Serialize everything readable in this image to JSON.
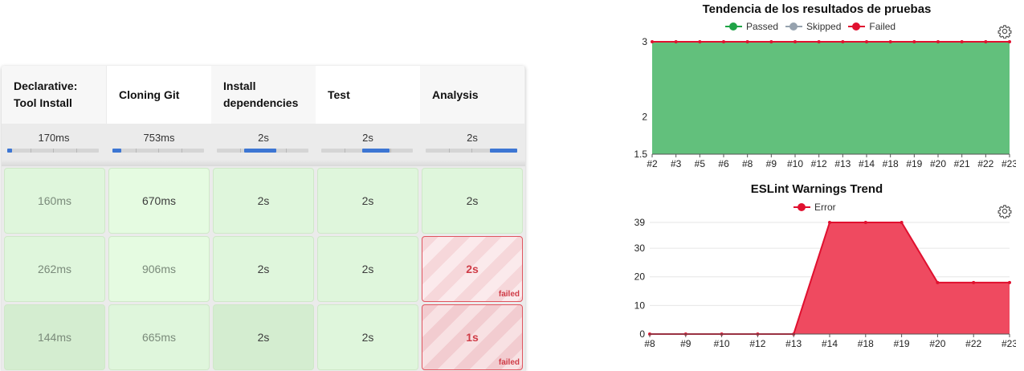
{
  "stage_view": {
    "stages": [
      {
        "name": "Declarative:\nTool Install",
        "avg": "170ms",
        "avg_fraction": 0.05
      },
      {
        "name": "Cloning Git",
        "avg": "753ms",
        "avg_fraction": 0.1
      },
      {
        "name": "Install\ndependencies",
        "avg": "2s",
        "avg_fraction": 0.35
      },
      {
        "name": "Test",
        "avg": "2s",
        "avg_fraction": 0.3
      },
      {
        "name": "Analysis",
        "avg": "2s",
        "avg_fraction": 0.3
      }
    ],
    "builds": [
      {
        "cells": [
          {
            "time": "160ms",
            "status": "success"
          },
          {
            "time": "670ms",
            "status": "success"
          },
          {
            "time": "2s",
            "status": "success"
          },
          {
            "time": "2s",
            "status": "success"
          },
          {
            "time": "2s",
            "status": "success"
          }
        ]
      },
      {
        "cells": [
          {
            "time": "262ms",
            "status": "success"
          },
          {
            "time": "906ms",
            "status": "success"
          },
          {
            "time": "2s",
            "status": "success"
          },
          {
            "time": "2s",
            "status": "success"
          },
          {
            "time": "2s",
            "status": "failed",
            "status_label": "failed"
          }
        ]
      },
      {
        "cells": [
          {
            "time": "144ms",
            "status": "success"
          },
          {
            "time": "665ms",
            "status": "success"
          },
          {
            "time": "2s",
            "status": "success"
          },
          {
            "time": "2s",
            "status": "success"
          },
          {
            "time": "1s",
            "status": "failed",
            "status_label": "failed"
          }
        ]
      }
    ]
  },
  "icons": {
    "settings": "gear-icon"
  },
  "chart_data": [
    {
      "type": "area",
      "title": "Tendencia de los resultados de pruebas",
      "x": [
        "#2",
        "#3",
        "#5",
        "#6",
        "#8",
        "#9",
        "#10",
        "#12",
        "#13",
        "#14",
        "#18",
        "#19",
        "#20",
        "#21",
        "#22",
        "#23"
      ],
      "series": [
        {
          "name": "Passed",
          "color": "#1fa346",
          "fill": "#62c07c",
          "values": [
            3,
            3,
            3,
            3,
            3,
            3,
            3,
            3,
            3,
            3,
            3,
            3,
            3,
            3,
            3,
            3
          ]
        },
        {
          "name": "Skipped",
          "color": "#96a2ae",
          "values": [
            0,
            0,
            0,
            0,
            0,
            0,
            0,
            0,
            0,
            0,
            0,
            0,
            0,
            0,
            0,
            0
          ]
        },
        {
          "name": "Failed",
          "color": "#e0102f",
          "values": [
            0,
            0,
            0,
            0,
            0,
            0,
            0,
            0,
            0,
            0,
            0,
            0,
            0,
            0,
            0,
            0
          ]
        }
      ],
      "stack_top_color": "#e0102f",
      "yticks": [
        "1.5",
        "2",
        "3"
      ],
      "ylim": [
        1.5,
        3
      ],
      "grid": true,
      "legend": "top"
    },
    {
      "type": "area",
      "title": "ESLint Warnings Trend",
      "x": [
        "#8",
        "#9",
        "#10",
        "#12",
        "#13",
        "#14",
        "#18",
        "#19",
        "#20",
        "#22",
        "#23"
      ],
      "series": [
        {
          "name": "Error",
          "color": "#e0102f",
          "fill": "#ef4a60",
          "values": [
            0,
            0,
            0,
            0,
            0,
            39,
            39,
            39,
            18,
            18,
            18
          ]
        }
      ],
      "yticks": [
        "0",
        "10",
        "20",
        "30",
        "39"
      ],
      "ylim": [
        0,
        39
      ],
      "grid": true,
      "legend": "top"
    }
  ]
}
